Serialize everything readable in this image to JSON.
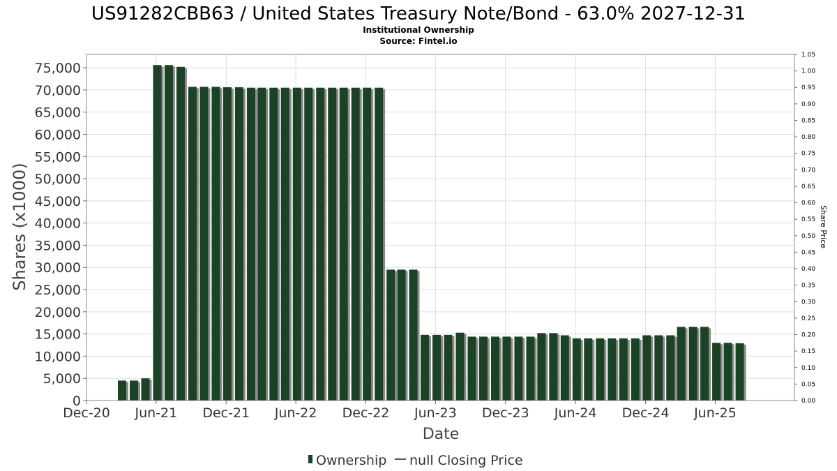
{
  "chart_data": {
    "type": "bar",
    "title": "US91282CBB63 / United States Treasury Note/Bond - 63.0% 2027-12-31",
    "subtitle_lines": [
      "Institutional Ownership",
      "Source: Fintel.io"
    ],
    "xlabel": "Date",
    "ylabel": "Shares (x1000)",
    "y2label": "Share Price",
    "x_domain": [
      "2020-12-01",
      "2025-12-25"
    ],
    "ylim": [
      0,
      78000
    ],
    "y_ticks": [
      0,
      5000,
      10000,
      15000,
      20000,
      25000,
      30000,
      35000,
      40000,
      45000,
      50000,
      55000,
      60000,
      65000,
      70000,
      75000
    ],
    "y_tick_labels": [
      "0",
      "5,000",
      "10,000",
      "15,000",
      "20,000",
      "25,000",
      "30,000",
      "35,000",
      "40,000",
      "45,000",
      "50,000",
      "55,000",
      "60,000",
      "65,000",
      "70,000",
      "75,000"
    ],
    "y2lim": [
      0,
      1.05
    ],
    "y2_tick_labels": [
      "0.00",
      "0.05",
      "0.10",
      "0.15",
      "0.20",
      "0.25",
      "0.30",
      "0.35",
      "0.40",
      "0.45",
      "0.50",
      "0.55",
      "0.60",
      "0.65",
      "0.70",
      "0.75",
      "0.80",
      "0.85",
      "0.90",
      "0.95",
      "1.00",
      "1.05"
    ],
    "x_ticks": [
      {
        "label": "Dec-20",
        "date": "2020-12-01"
      },
      {
        "label": "Jun-21",
        "date": "2021-06-01"
      },
      {
        "label": "Dec-21",
        "date": "2021-12-01"
      },
      {
        "label": "Jun-22",
        "date": "2022-06-01"
      },
      {
        "label": "Dec-22",
        "date": "2022-12-01"
      },
      {
        "label": "Jun-23",
        "date": "2023-06-01"
      },
      {
        "label": "Dec-23",
        "date": "2023-12-01"
      },
      {
        "label": "Jun-24",
        "date": "2024-06-01"
      },
      {
        "label": "Dec-24",
        "date": "2024-12-01"
      },
      {
        "label": "Jun-25",
        "date": "2025-06-01"
      }
    ],
    "grid": true,
    "legend_position": "bottom-center",
    "series": [
      {
        "name": "Ownership",
        "color": "#1b4225",
        "shadow_color": "#8c8c8c",
        "points": [
          {
            "date": "2021-03-04",
            "value": 4500
          },
          {
            "date": "2021-04-04",
            "value": 4500
          },
          {
            "date": "2021-05-04",
            "value": 5000
          },
          {
            "date": "2021-06-04",
            "value": 75600
          },
          {
            "date": "2021-07-04",
            "value": 75600
          },
          {
            "date": "2021-08-04",
            "value": 75200
          },
          {
            "date": "2021-09-04",
            "value": 70700
          },
          {
            "date": "2021-10-04",
            "value": 70700
          },
          {
            "date": "2021-11-04",
            "value": 70700
          },
          {
            "date": "2021-12-04",
            "value": 70600
          },
          {
            "date": "2022-01-04",
            "value": 70600
          },
          {
            "date": "2022-02-04",
            "value": 70500
          },
          {
            "date": "2022-03-04",
            "value": 70500
          },
          {
            "date": "2022-04-04",
            "value": 70500
          },
          {
            "date": "2022-05-04",
            "value": 70500
          },
          {
            "date": "2022-06-04",
            "value": 70500
          },
          {
            "date": "2022-07-04",
            "value": 70500
          },
          {
            "date": "2022-08-04",
            "value": 70500
          },
          {
            "date": "2022-09-04",
            "value": 70500
          },
          {
            "date": "2022-10-04",
            "value": 70500
          },
          {
            "date": "2022-11-04",
            "value": 70500
          },
          {
            "date": "2022-12-04",
            "value": 70500
          },
          {
            "date": "2023-01-04",
            "value": 70500
          },
          {
            "date": "2023-02-04",
            "value": 29500
          },
          {
            "date": "2023-03-04",
            "value": 29500
          },
          {
            "date": "2023-04-04",
            "value": 29500
          },
          {
            "date": "2023-05-04",
            "value": 14800
          },
          {
            "date": "2023-06-04",
            "value": 14800
          },
          {
            "date": "2023-07-04",
            "value": 14800
          },
          {
            "date": "2023-08-04",
            "value": 15300
          },
          {
            "date": "2023-09-04",
            "value": 14400
          },
          {
            "date": "2023-10-04",
            "value": 14400
          },
          {
            "date": "2023-11-04",
            "value": 14400
          },
          {
            "date": "2023-12-04",
            "value": 14400
          },
          {
            "date": "2024-01-04",
            "value": 14400
          },
          {
            "date": "2024-02-04",
            "value": 14400
          },
          {
            "date": "2024-03-04",
            "value": 15200
          },
          {
            "date": "2024-04-04",
            "value": 15200
          },
          {
            "date": "2024-05-04",
            "value": 14700
          },
          {
            "date": "2024-06-04",
            "value": 14000
          },
          {
            "date": "2024-07-04",
            "value": 14000
          },
          {
            "date": "2024-08-04",
            "value": 14000
          },
          {
            "date": "2024-09-04",
            "value": 14000
          },
          {
            "date": "2024-10-04",
            "value": 14000
          },
          {
            "date": "2024-11-04",
            "value": 14000
          },
          {
            "date": "2024-12-04",
            "value": 14700
          },
          {
            "date": "2025-01-04",
            "value": 14700
          },
          {
            "date": "2025-02-04",
            "value": 14700
          },
          {
            "date": "2025-03-04",
            "value": 16600
          },
          {
            "date": "2025-04-04",
            "value": 16600
          },
          {
            "date": "2025-05-04",
            "value": 16600
          },
          {
            "date": "2025-06-04",
            "value": 13000
          },
          {
            "date": "2025-07-04",
            "value": 13000
          },
          {
            "date": "2025-08-04",
            "value": 12900
          }
        ]
      }
    ],
    "legend": [
      {
        "name": "Ownership",
        "symbol": "bar",
        "color": "#1b4225"
      },
      {
        "name": "null Closing Price",
        "symbol": "line",
        "color": "#555555"
      }
    ]
  }
}
